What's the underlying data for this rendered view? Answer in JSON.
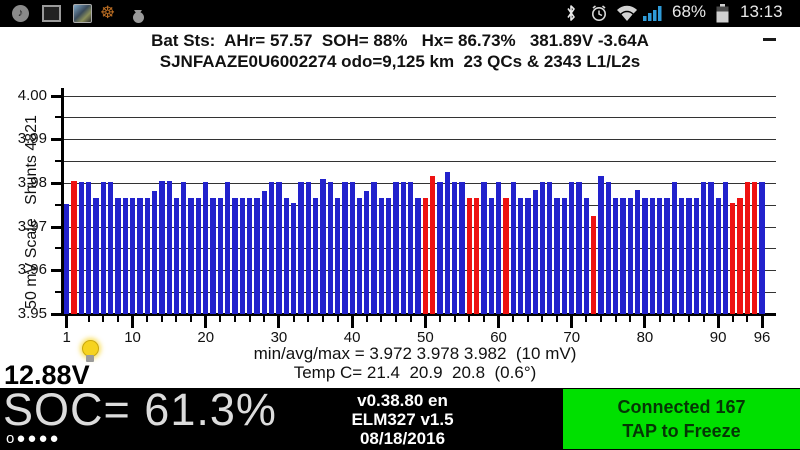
{
  "status_bar": {
    "time": "13:13",
    "battery_percent": "68%",
    "music_glyph": "♪",
    "helm_glyph": "☸"
  },
  "header": {
    "line1": "Bat Sts:  AHr= 57.57  SOH= 88%   Hx= 86.73%   381.89V -3.64A",
    "line2": "SJNFAAZE0U6002274 odo=9,125 km  23 QCs & 2343 L1/L2s"
  },
  "chart_data": {
    "type": "bar",
    "title": "",
    "xlabel": "",
    "ylabel": "50 mV Scale   Shunts 4821",
    "ylim": [
      3.95,
      4.005
    ],
    "yticks": [
      3.95,
      3.96,
      3.97,
      3.98,
      3.99,
      4.0
    ],
    "yticks_minor": [
      3.955,
      3.965,
      3.975,
      3.985,
      3.995
    ],
    "xticks": [
      1,
      10,
      20,
      30,
      40,
      50,
      60,
      70,
      80,
      90,
      96
    ],
    "grid": "horizontal every 0.005",
    "legend": "none",
    "bar_color": "#2222cc",
    "shunt_color": "#ee1212",
    "categories_note": "cell pairs 1..96",
    "values": [
      3.9752,
      3.9805,
      3.9802,
      3.9802,
      3.9765,
      3.9802,
      3.9802,
      3.9765,
      3.9765,
      3.9765,
      3.9765,
      3.9765,
      3.9782,
      3.9805,
      3.9805,
      3.9765,
      3.9802,
      3.9765,
      3.9765,
      3.9802,
      3.9765,
      3.9765,
      3.9802,
      3.9765,
      3.9765,
      3.9765,
      3.9765,
      3.9782,
      3.9802,
      3.9802,
      3.9765,
      3.9755,
      3.9802,
      3.9802,
      3.9765,
      3.981,
      3.9802,
      3.9765,
      3.9802,
      3.9802,
      3.9765,
      3.9782,
      3.9802,
      3.9765,
      3.9765,
      3.9802,
      3.9802,
      3.9802,
      3.9765,
      3.9765,
      3.9815,
      3.9802,
      3.9825,
      3.9802,
      3.9802,
      3.9765,
      3.9765,
      3.9802,
      3.9765,
      3.9802,
      3.9765,
      3.9802,
      3.9765,
      3.9765,
      3.9785,
      3.9802,
      3.9802,
      3.9765,
      3.9765,
      3.9802,
      3.9802,
      3.9765,
      3.9725,
      3.9815,
      3.9802,
      3.9765,
      3.9765,
      3.9765,
      3.9785,
      3.9765,
      3.9765,
      3.9765,
      3.9765,
      3.9802,
      3.9765,
      3.9765,
      3.9765,
      3.9802,
      3.9802,
      3.9765,
      3.9802,
      3.9755,
      3.9765,
      3.9802,
      3.9802,
      3.9802
    ],
    "red_cells": [
      2,
      50,
      51,
      56,
      57,
      61,
      73,
      92,
      93,
      94,
      95
    ]
  },
  "stats": {
    "min_avg_max": "min/avg/max = 3.972 3.978 3.982  (10 mV)",
    "temp": "Temp C= 21.4  20.9  20.8  (0.6°)"
  },
  "aux_battery": {
    "voltage": "12.88V"
  },
  "footer": {
    "soc": "SOC= 61.3%",
    "pager": "o●●●●",
    "version": "v0.38.80 en",
    "elm": "ELM327 v1.5",
    "date": "08/18/2016",
    "conn_line1": "Connected 167",
    "conn_line2": "TAP to Freeze",
    "conn_bg": "#00e000"
  }
}
